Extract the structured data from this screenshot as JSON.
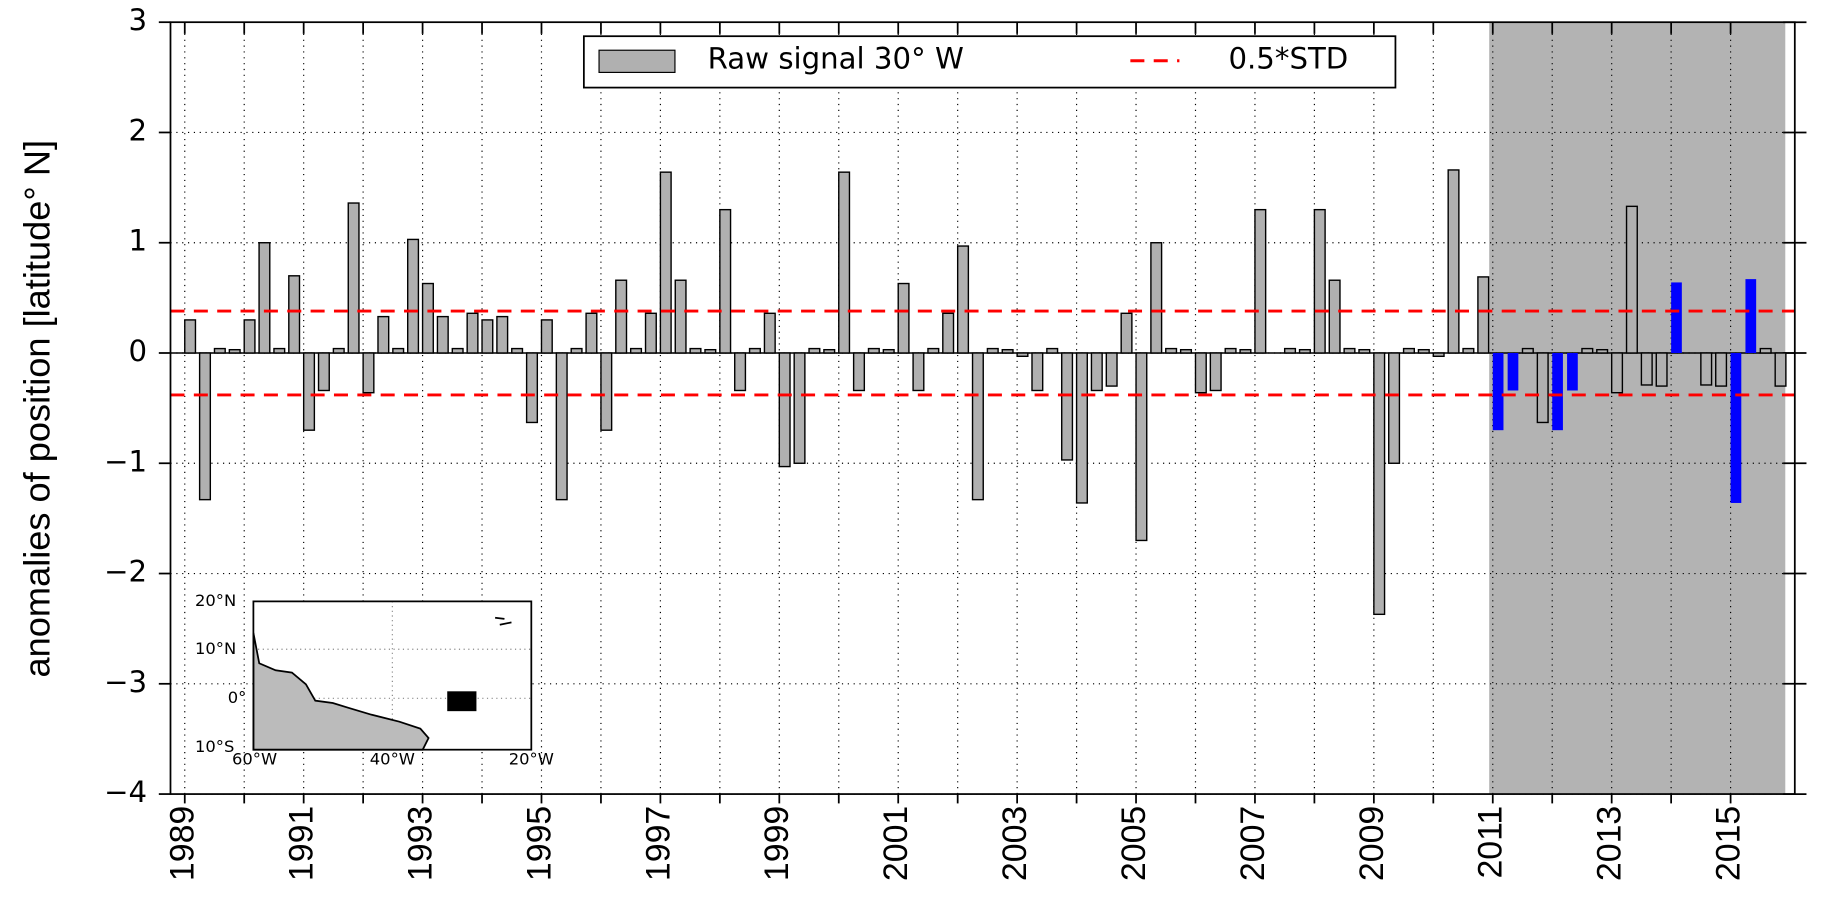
{
  "chart_data": {
    "type": "bar",
    "ylabel": "anomalies of position [latitude° N]",
    "x": [
      1989,
      1989.25,
      1989.5,
      1989.75,
      1990,
      1990.25,
      1990.5,
      1990.75,
      1991,
      1991.25,
      1991.5,
      1991.75,
      1992,
      1992.25,
      1992.5,
      1992.75,
      1993,
      1993.25,
      1993.5,
      1993.75,
      1994,
      1994.25,
      1994.5,
      1994.75,
      1995,
      1995.25,
      1995.5,
      1995.75,
      1996,
      1996.25,
      1996.5,
      1996.75,
      1997,
      1997.25,
      1997.5,
      1997.75,
      1998,
      1998.25,
      1998.5,
      1998.75,
      1999,
      1999.25,
      1999.5,
      1999.75,
      2000,
      2000.25,
      2000.5,
      2000.75,
      2001,
      2001.25,
      2001.5,
      2001.75,
      2002,
      2002.25,
      2002.5,
      2002.75,
      2003,
      2003.25,
      2003.5,
      2003.75,
      2004,
      2004.25,
      2004.5,
      2004.75,
      2005,
      2005.25,
      2005.5,
      2005.75,
      2006,
      2006.25,
      2006.5,
      2006.75,
      2007,
      2007.25,
      2007.5,
      2007.75,
      2008,
      2008.25,
      2008.5,
      2008.75,
      2009,
      2009.25,
      2009.5,
      2009.75,
      2010,
      2010.25,
      2010.5,
      2010.75,
      2011,
      2011.25,
      2011.5,
      2011.75,
      2012,
      2012.25,
      2012.5,
      2012.75,
      2013,
      2013.25,
      2013.5,
      2013.75,
      2014,
      2014.25,
      2014.5,
      2014.75,
      2015,
      2015.25,
      2015.5,
      2015.75
    ],
    "series": [
      {
        "name": "Raw signal 30° W",
        "color": "#b0b0b0",
        "values": [
          0.3,
          -1.33,
          0.04,
          0.03,
          0.3,
          1.0,
          0.04,
          0.7,
          -0.7,
          -0.34,
          0.04,
          1.36,
          -0.36,
          0.33,
          0.04,
          1.03,
          0.63,
          0.33,
          0.04,
          0.36,
          0.3,
          0.33,
          0.04,
          -0.63,
          0.3,
          -1.33,
          0.04,
          0.36,
          -0.7,
          0.66,
          0.04,
          0.36,
          1.64,
          0.66,
          0.04,
          0.03,
          1.3,
          -0.34,
          0.04,
          0.36,
          -1.03,
          -1.0,
          0.04,
          0.03,
          1.64,
          -0.34,
          0.04,
          0.03,
          0.63,
          -0.34,
          0.04,
          0.36,
          0.97,
          -1.33,
          0.04,
          0.03,
          -0.03,
          -0.34,
          0.04,
          -0.97,
          -1.36,
          -0.34,
          -0.3,
          0.36,
          -1.7,
          1.0,
          0.04,
          0.03,
          -0.36,
          -0.34,
          0.04,
          0.03,
          1.3,
          0,
          0.04,
          0.03,
          1.3,
          0.66,
          0.04,
          0.03,
          -2.37,
          -1.0,
          0.04,
          0.03,
          -0.03,
          1.66,
          0.04,
          0.69,
          -0.7,
          -0.34,
          0.04,
          -0.63,
          -0.7,
          -0.34,
          0.04,
          0.03,
          -0.36,
          1.33,
          -0.29,
          -0.3,
          0.64,
          0,
          -0.29,
          -0.3,
          -1.36,
          0.67,
          0.04,
          -0.3
        ],
        "colors": [
          "#b0b0b0",
          "#b0b0b0",
          "#b0b0b0",
          "#b0b0b0",
          "#b0b0b0",
          "#b0b0b0",
          "#b0b0b0",
          "#b0b0b0",
          "#b0b0b0",
          "#b0b0b0",
          "#b0b0b0",
          "#b0b0b0",
          "#b0b0b0",
          "#b0b0b0",
          "#b0b0b0",
          "#b0b0b0",
          "#b0b0b0",
          "#b0b0b0",
          "#b0b0b0",
          "#b0b0b0",
          "#b0b0b0",
          "#b0b0b0",
          "#b0b0b0",
          "#b0b0b0",
          "#b0b0b0",
          "#b0b0b0",
          "#b0b0b0",
          "#b0b0b0",
          "#b0b0b0",
          "#b0b0b0",
          "#b0b0b0",
          "#b0b0b0",
          "#b0b0b0",
          "#b0b0b0",
          "#b0b0b0",
          "#b0b0b0",
          "#b0b0b0",
          "#b0b0b0",
          "#b0b0b0",
          "#b0b0b0",
          "#b0b0b0",
          "#b0b0b0",
          "#b0b0b0",
          "#b0b0b0",
          "#b0b0b0",
          "#b0b0b0",
          "#b0b0b0",
          "#b0b0b0",
          "#b0b0b0",
          "#b0b0b0",
          "#b0b0b0",
          "#b0b0b0",
          "#b0b0b0",
          "#b0b0b0",
          "#b0b0b0",
          "#b0b0b0",
          "#b0b0b0",
          "#b0b0b0",
          "#b0b0b0",
          "#b0b0b0",
          "#b0b0b0",
          "#b0b0b0",
          "#b0b0b0",
          "#b0b0b0",
          "#b0b0b0",
          "#b0b0b0",
          "#b0b0b0",
          "#b0b0b0",
          "#b0b0b0",
          "#b0b0b0",
          "#b0b0b0",
          "#b0b0b0",
          "#b0b0b0",
          "#b0b0b0",
          "#b0b0b0",
          "#b0b0b0",
          "#b0b0b0",
          "#b0b0b0",
          "#b0b0b0",
          "#b0b0b0",
          "#b0b0b0",
          "#b0b0b0",
          "#b0b0b0",
          "#b0b0b0",
          "#b0b0b0",
          "#b0b0b0",
          "#b0b0b0",
          "#b0b0b0",
          "#0000ff",
          "#0000ff",
          "#b0b0b0",
          "#b0b0b0",
          "#0000ff",
          "#0000ff",
          "#b0b0b0",
          "#b0b0b0",
          "#b0b0b0",
          "#b0b0b0",
          "#b0b0b0",
          "#b0b0b0",
          "#0000ff",
          "#b0b0b0",
          "#b0b0b0",
          "#b0b0b0",
          "#0000ff",
          "#0000ff",
          "#b0b0b0",
          "#b0b0b0"
        ]
      }
    ],
    "thresholds": {
      "name": "0.5*STD",
      "color": "#ff0000",
      "values": [
        0.38,
        -0.38
      ]
    },
    "shaded_span": [
      2010.94,
      2015.92
    ],
    "xlim": [
      1988.76,
      2016.08
    ],
    "ylim": [
      -4,
      3
    ],
    "xticks": [
      1989,
      1991,
      1993,
      1995,
      1997,
      1999,
      2001,
      2003,
      2005,
      2007,
      2009,
      2011,
      2013,
      2015
    ],
    "minor_xticks": [
      1990,
      1992,
      1994,
      1996,
      1998,
      2000,
      2002,
      2004,
      2006,
      2008,
      2010,
      2012,
      2014
    ],
    "yticks": [
      {
        "value": -4,
        "label": "−4"
      },
      {
        "value": -3,
        "label": "−3"
      },
      {
        "value": -2,
        "label": "−2"
      },
      {
        "value": -1,
        "label": "−1"
      },
      0,
      1,
      2,
      3
    ],
    "grid": true,
    "legend": "upper center",
    "inset": {
      "y_labels": [
        "20°N",
        "10°N",
        "0°",
        "10°S"
      ],
      "x_labels": [
        "60°W",
        "40°W",
        "20°W"
      ]
    }
  }
}
